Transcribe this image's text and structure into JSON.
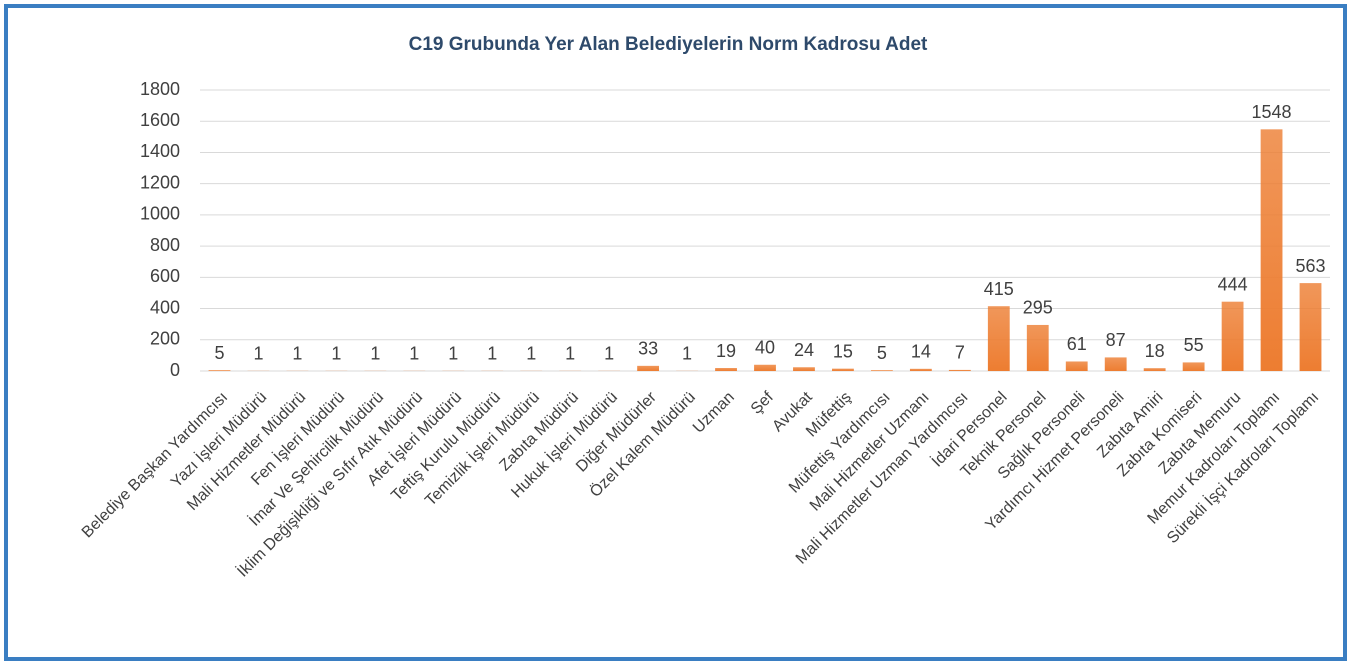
{
  "chart_data": {
    "type": "bar",
    "title": "C19 Grubunda Yer Alan Belediyelerin Norm Kadrosu Adet",
    "categories": [
      "Belediye Başkan Yardımcısı",
      "Yazı İşleri Müdürü",
      "Mali Hizmetler Müdürü",
      "Fen İşleri Müdürü",
      "İmar Ve Şehircilik Müdürü",
      "İklim Değişikliği ve Sıfır Atık Müdürü",
      "Afet İşleri Müdürü",
      "Teftiş Kurulu Müdürü",
      "Temizlik İşleri Müdürü",
      "Zabıta Müdürü",
      "Hukuk İşleri Müdürü",
      "Diğer Müdürler",
      "Özel Kalem Müdürü",
      "Uzman",
      "Şef",
      "Avukat",
      "Müfettiş",
      "Müfettiş Yardımcısı",
      "Mali Hizmetler Uzmanı",
      "Mali Hizmetler Uzman Yardımcısı",
      "İdari Personel",
      "Teknik Personel",
      "Sağlık Personeli",
      "Yardımcı Hizmet Personeli",
      "Zabıta Amiri",
      "Zabıta Komiseri",
      "Zabıta Memuru",
      "Memur Kadroları Toplamı",
      "Sürekli İşçi Kadroları Toplamı"
    ],
    "values": [
      5,
      1,
      1,
      1,
      1,
      1,
      1,
      1,
      1,
      1,
      1,
      33,
      1,
      19,
      40,
      24,
      15,
      5,
      14,
      7,
      415,
      295,
      61,
      87,
      18,
      55,
      444,
      1548,
      563
    ],
    "color": "#ed7d31",
    "ylim": [
      0,
      1800
    ],
    "yticks": [
      0,
      200,
      400,
      600,
      800,
      1000,
      1200,
      1400,
      1600,
      1800
    ],
    "grid": true
  }
}
